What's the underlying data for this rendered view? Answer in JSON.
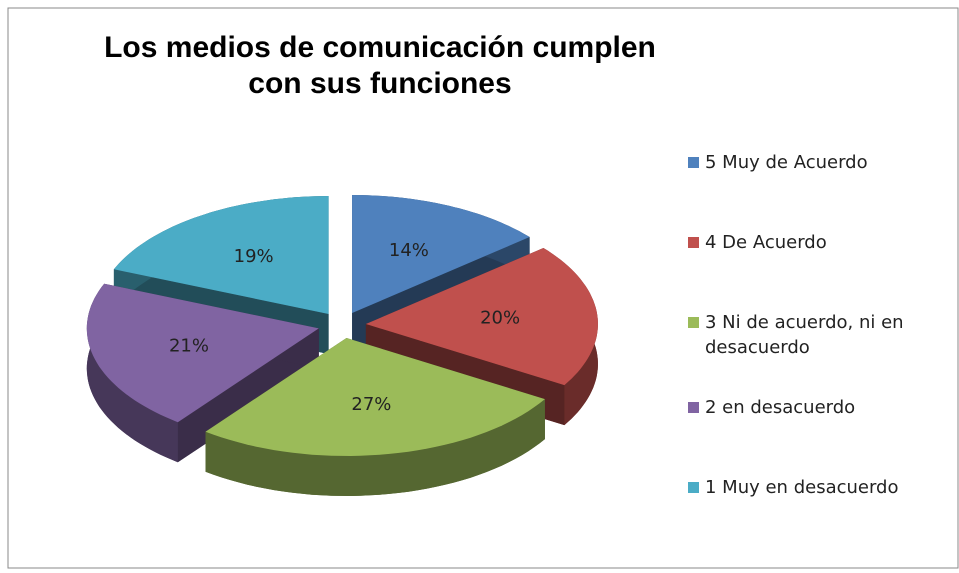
{
  "chart_data": {
    "type": "pie3d",
    "title": "Los medios de comunicación cumplen con sus funciones",
    "categories": [
      "5 Muy de Acuerdo",
      "4 De Acuerdo",
      "3 Ni de acuerdo, ni en desacuerdo",
      "2 en desacuerdo",
      "1 Muy en desacuerdo"
    ],
    "values": [
      14,
      20,
      27,
      21,
      19
    ],
    "value_labels": [
      "14%",
      "20%",
      "27%",
      "21%",
      "19%"
    ],
    "colors": [
      "#4f81bd",
      "#c0504d",
      "#9bbb59",
      "#8064a2",
      "#4bacc6"
    ],
    "legend": "right"
  }
}
